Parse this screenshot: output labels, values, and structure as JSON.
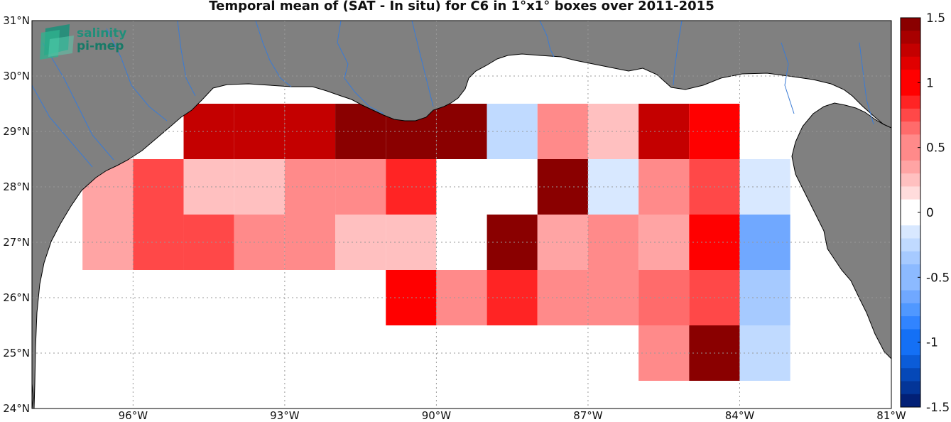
{
  "title": "Temporal mean of (SAT - In situ) for C6 in 1°x1° boxes over 2011-2015",
  "logo": {
    "line1": "salinity",
    "line2": "pi-mep"
  },
  "map": {
    "lon_range": [
      -98,
      -81
    ],
    "lat_range": [
      24,
      31
    ],
    "lat_ticks": [
      {
        "value": 24,
        "label": "24°N"
      },
      {
        "value": 25,
        "label": "25°N"
      },
      {
        "value": 26,
        "label": "26°N"
      },
      {
        "value": 27,
        "label": "27°N"
      },
      {
        "value": 28,
        "label": "28°N"
      },
      {
        "value": 29,
        "label": "29°N"
      },
      {
        "value": 30,
        "label": "30°N"
      },
      {
        "value": 31,
        "label": "31°N"
      }
    ],
    "lon_ticks": [
      {
        "value": -96,
        "label": "96°W"
      },
      {
        "value": -93,
        "label": "93°W"
      },
      {
        "value": -90,
        "label": "90°W"
      },
      {
        "value": -87,
        "label": "87°W"
      },
      {
        "value": -84,
        "label": "84°W"
      },
      {
        "value": -81,
        "label": "81°W"
      }
    ],
    "land_color": "#808080",
    "river_color": "#3a7bd5",
    "grid": true
  },
  "colorbar": {
    "range": [
      -1.5,
      1.5
    ],
    "ticks": [
      {
        "value": 1.5,
        "label": "1.5"
      },
      {
        "value": 1,
        "label": "1"
      },
      {
        "value": 0.5,
        "label": "0.5"
      },
      {
        "value": 0,
        "label": "0"
      },
      {
        "value": -0.5,
        "label": "-0.5"
      },
      {
        "value": -1,
        "label": "-1"
      },
      {
        "value": -1.5,
        "label": "-1.5"
      }
    ]
  },
  "chart_data": {
    "type": "heatmap",
    "title": "Temporal mean of (SAT - In situ) for C6 in 1°x1° boxes over 2011-2015",
    "box_size_deg": 1,
    "cells": [
      {
        "lon": -94.5,
        "lat": 29,
        "value": 1.2
      },
      {
        "lon": -93.5,
        "lat": 29,
        "value": 1.2
      },
      {
        "lon": -92.5,
        "lat": 29,
        "value": 1.3
      },
      {
        "lon": -91.5,
        "lat": 29,
        "value": 1.45
      },
      {
        "lon": -90.5,
        "lat": 29,
        "value": 1.45
      },
      {
        "lon": -89.5,
        "lat": 29,
        "value": 1.45
      },
      {
        "lon": -88.5,
        "lat": 29,
        "value": -0.25
      },
      {
        "lon": -87.5,
        "lat": 29,
        "value": 0.55
      },
      {
        "lon": -86.5,
        "lat": 29,
        "value": 0.2
      },
      {
        "lon": -85.5,
        "lat": 29,
        "value": 1.2
      },
      {
        "lon": -84.5,
        "lat": 29,
        "value": 0.95
      },
      {
        "lon": -96.5,
        "lat": 28,
        "value": 0.4
      },
      {
        "lon": -95.5,
        "lat": 28,
        "value": 0.8
      },
      {
        "lon": -94.5,
        "lat": 28,
        "value": 0.3
      },
      {
        "lon": -93.5,
        "lat": 28,
        "value": 0.2
      },
      {
        "lon": -92.5,
        "lat": 28,
        "value": 0.45
      },
      {
        "lon": -91.5,
        "lat": 28,
        "value": 0.45
      },
      {
        "lon": -90.5,
        "lat": 28,
        "value": 0.85
      },
      {
        "lon": -89.5,
        "lat": 28,
        "value": 0.0
      },
      {
        "lon": -88.5,
        "lat": 28,
        "value": 0.0
      },
      {
        "lon": -87.5,
        "lat": 28,
        "value": 1.45
      },
      {
        "lon": -86.5,
        "lat": 28,
        "value": -0.15
      },
      {
        "lon": -85.5,
        "lat": 28,
        "value": 0.45
      },
      {
        "lon": -84.5,
        "lat": 28,
        "value": 0.8
      },
      {
        "lon": -83.5,
        "lat": 28,
        "value": -0.15
      },
      {
        "lon": -96.5,
        "lat": 27,
        "value": 0.4
      },
      {
        "lon": -95.5,
        "lat": 27,
        "value": 0.7
      },
      {
        "lon": -94.5,
        "lat": 27,
        "value": 0.7
      },
      {
        "lon": -93.5,
        "lat": 27,
        "value": 0.5
      },
      {
        "lon": -92.5,
        "lat": 27,
        "value": 0.5
      },
      {
        "lon": -91.5,
        "lat": 27,
        "value": 0.2
      },
      {
        "lon": -90.5,
        "lat": 27,
        "value": 0.3
      },
      {
        "lon": -89.5,
        "lat": 27,
        "value": 0.0
      },
      {
        "lon": -88.5,
        "lat": 27,
        "value": 1.45
      },
      {
        "lon": -87.5,
        "lat": 27,
        "value": 0.35
      },
      {
        "lon": -86.5,
        "lat": 27,
        "value": 0.5
      },
      {
        "lon": -85.5,
        "lat": 27,
        "value": 0.35
      },
      {
        "lon": -84.5,
        "lat": 27,
        "value": 0.95
      },
      {
        "lon": -83.5,
        "lat": 27,
        "value": -0.6
      },
      {
        "lon": -90.5,
        "lat": 26,
        "value": 0.95
      },
      {
        "lon": -89.5,
        "lat": 26,
        "value": 0.45
      },
      {
        "lon": -88.5,
        "lat": 26,
        "value": 0.85
      },
      {
        "lon": -87.5,
        "lat": 26,
        "value": 0.45
      },
      {
        "lon": -86.5,
        "lat": 26,
        "value": 0.45
      },
      {
        "lon": -85.5,
        "lat": 26,
        "value": 0.6
      },
      {
        "lon": -84.5,
        "lat": 26,
        "value": 0.8
      },
      {
        "lon": -83.5,
        "lat": 26,
        "value": -0.35
      },
      {
        "lon": -85.5,
        "lat": 25,
        "value": 0.45
      },
      {
        "lon": -84.5,
        "lat": 25,
        "value": 1.45
      },
      {
        "lon": -83.5,
        "lat": 25,
        "value": -0.25
      }
    ]
  }
}
